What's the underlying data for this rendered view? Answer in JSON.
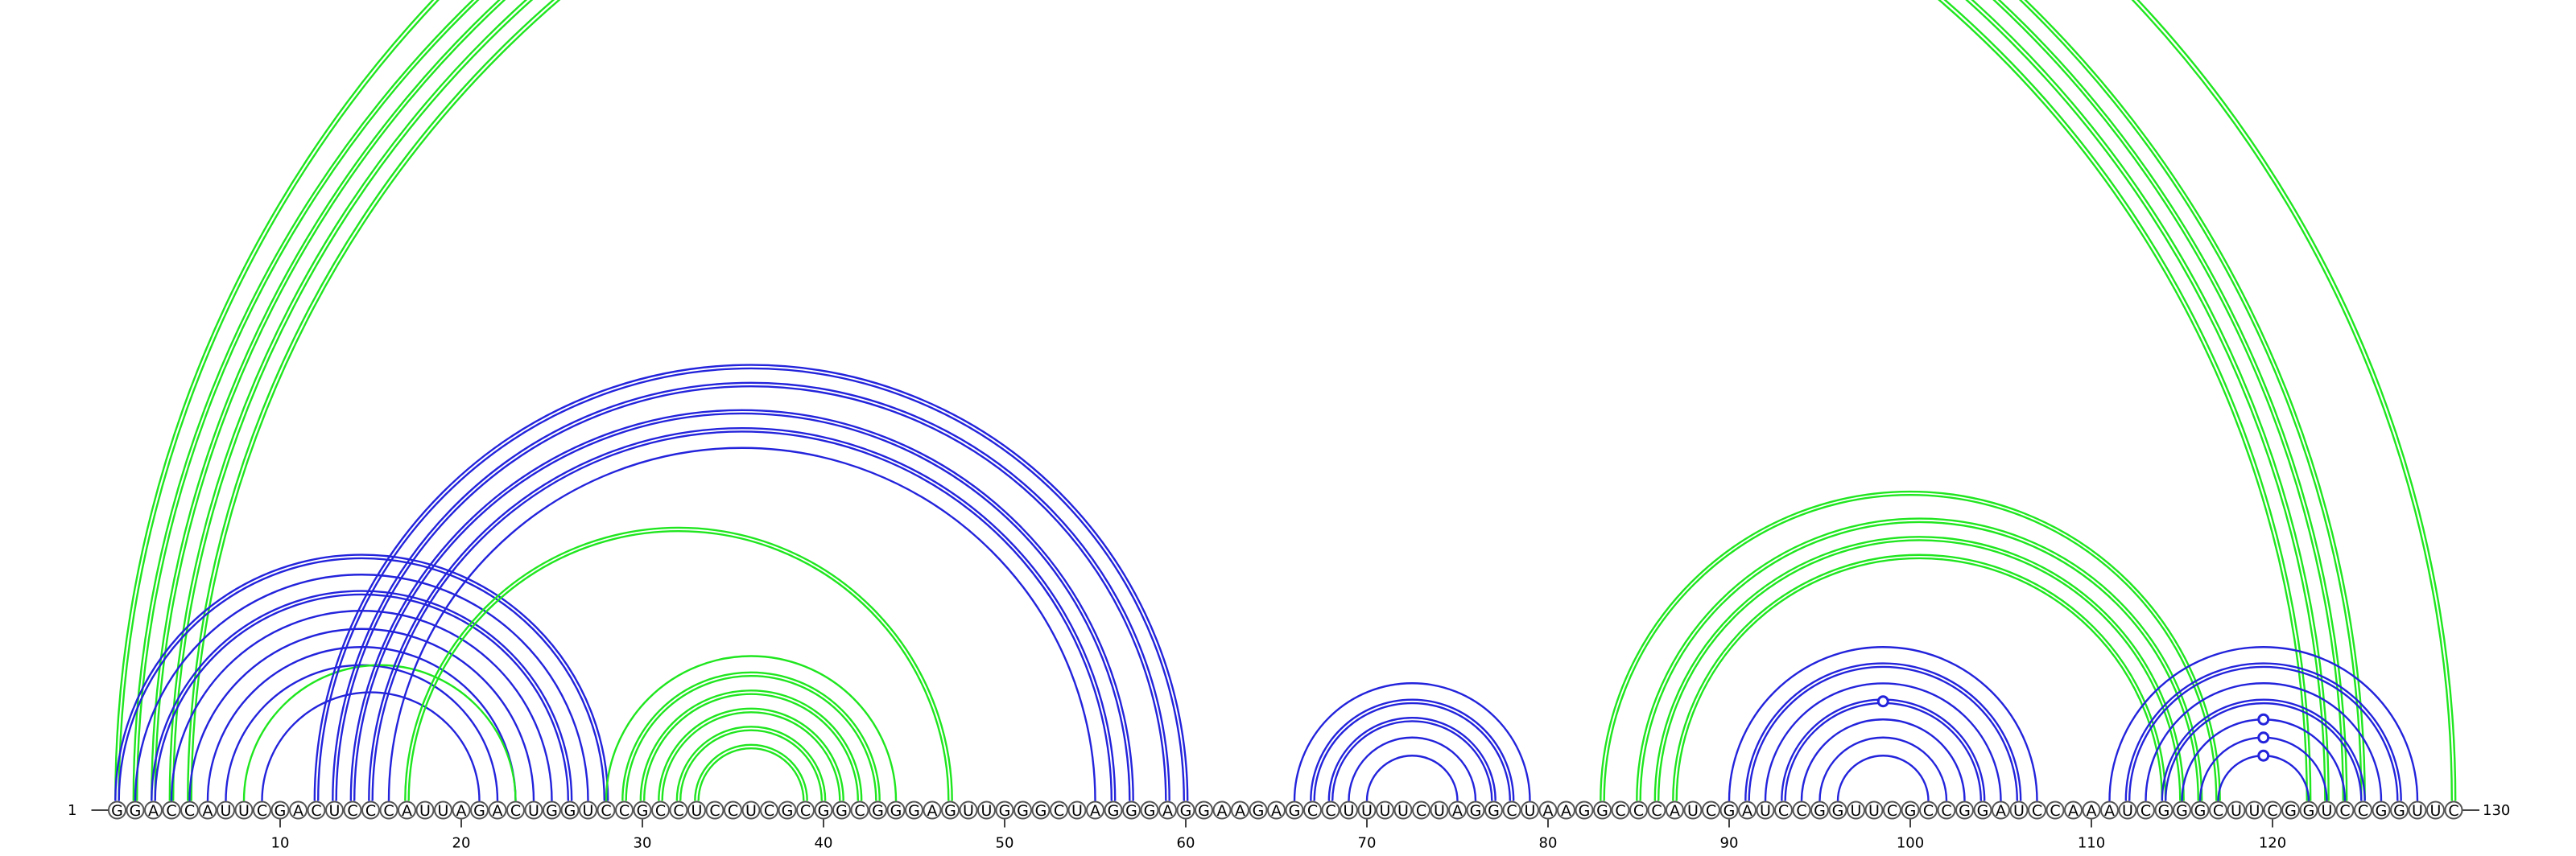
{
  "sequence": "GGACCAUUCGACUCCCAUUAGACUGGUCCGCCUCCUCGCGGCGGGAGUUGGGCUAGGGAGGAAGAGCCUUUUCUAGGCUAAGGCCCAUCGAUCCGGUUCGCCGGAUCCAAAUCGGGCUUCGGUCCGGUUC",
  "start_label": "1",
  "end_label": "130",
  "ticks": [
    10,
    20,
    30,
    40,
    50,
    60,
    70,
    80,
    90,
    100,
    110,
    120
  ],
  "colors": {
    "green": "#1fe61f",
    "blue": "#2323dc"
  },
  "arcs": [
    {
      "i": 1,
      "j": 130,
      "color": "green",
      "lines": 2
    },
    {
      "i": 2,
      "j": 125,
      "color": "green",
      "lines": 2
    },
    {
      "i": 3,
      "j": 124,
      "color": "green",
      "lines": 2
    },
    {
      "i": 4,
      "j": 123,
      "color": "green",
      "lines": 2
    },
    {
      "i": 5,
      "j": 122,
      "color": "green",
      "lines": 2
    },
    {
      "i": 1,
      "j": 28,
      "color": "blue",
      "lines": 2
    },
    {
      "i": 2,
      "j": 27,
      "color": "blue",
      "lines": 1
    },
    {
      "i": 3,
      "j": 26,
      "color": "blue",
      "lines": 2
    },
    {
      "i": 4,
      "j": 25,
      "color": "blue",
      "lines": 1
    },
    {
      "i": 5,
      "j": 24,
      "color": "blue",
      "lines": 1
    },
    {
      "i": 6,
      "j": 23,
      "color": "blue",
      "lines": 1
    },
    {
      "i": 7,
      "j": 22,
      "color": "blue",
      "lines": 1
    },
    {
      "i": 9,
      "j": 21,
      "color": "blue",
      "lines": 1
    },
    {
      "i": 8,
      "j": 23,
      "color": "green",
      "lines": 1
    },
    {
      "i": 12,
      "j": 60,
      "color": "blue",
      "lines": 2
    },
    {
      "i": 13,
      "j": 59,
      "color": "blue",
      "lines": 2
    },
    {
      "i": 14,
      "j": 57,
      "color": "blue",
      "lines": 2
    },
    {
      "i": 15,
      "j": 56,
      "color": "blue",
      "lines": 2
    },
    {
      "i": 16,
      "j": 55,
      "color": "blue",
      "lines": 1
    },
    {
      "i": 17,
      "j": 47,
      "color": "green",
      "lines": 2
    },
    {
      "i": 28,
      "j": 44,
      "color": "green",
      "lines": 1
    },
    {
      "i": 29,
      "j": 43,
      "color": "green",
      "lines": 2
    },
    {
      "i": 30,
      "j": 42,
      "color": "green",
      "lines": 2
    },
    {
      "i": 31,
      "j": 41,
      "color": "green",
      "lines": 2
    },
    {
      "i": 32,
      "j": 40,
      "color": "green",
      "lines": 2
    },
    {
      "i": 33,
      "j": 39,
      "color": "green",
      "lines": 2
    },
    {
      "i": 66,
      "j": 79,
      "color": "blue",
      "lines": 1
    },
    {
      "i": 67,
      "j": 78,
      "color": "blue",
      "lines": 2
    },
    {
      "i": 68,
      "j": 77,
      "color": "blue",
      "lines": 2
    },
    {
      "i": 69,
      "j": 76,
      "color": "blue",
      "lines": 1
    },
    {
      "i": 70,
      "j": 75,
      "color": "blue",
      "lines": 1
    },
    {
      "i": 83,
      "j": 117,
      "color": "green",
      "lines": 2
    },
    {
      "i": 85,
      "j": 116,
      "color": "green",
      "lines": 2
    },
    {
      "i": 86,
      "j": 115,
      "color": "green",
      "lines": 2
    },
    {
      "i": 87,
      "j": 114,
      "color": "green",
      "lines": 2
    },
    {
      "i": 90,
      "j": 107,
      "color": "blue",
      "lines": 1
    },
    {
      "i": 91,
      "j": 106,
      "color": "blue",
      "lines": 2
    },
    {
      "i": 92,
      "j": 105,
      "color": "blue",
      "lines": 1
    },
    {
      "i": 93,
      "j": 104,
      "color": "blue",
      "lines": 2
    },
    {
      "i": 94,
      "j": 103,
      "color": "blue",
      "lines": 1
    },
    {
      "i": 95,
      "j": 102,
      "color": "blue",
      "lines": 1
    },
    {
      "i": 96,
      "j": 101,
      "color": "blue",
      "lines": 1
    },
    {
      "i": 111,
      "j": 128,
      "color": "blue",
      "lines": 1
    },
    {
      "i": 112,
      "j": 127,
      "color": "blue",
      "lines": 2
    },
    {
      "i": 113,
      "j": 126,
      "color": "blue",
      "lines": 1
    },
    {
      "i": 114,
      "j": 125,
      "color": "blue",
      "lines": 2
    },
    {
      "i": 115,
      "j": 124,
      "color": "blue",
      "lines": 1
    },
    {
      "i": 116,
      "j": 123,
      "color": "blue",
      "lines": 1
    },
    {
      "i": 117,
      "j": 122,
      "color": "blue",
      "lines": 1
    }
  ],
  "markers": [
    {
      "x": 66,
      "color": "green",
      "arc": 0
    },
    {
      "x": 98.5,
      "color": "blue",
      "arc": 45
    },
    {
      "x": 119.5,
      "color": "blue",
      "arc": 46
    },
    {
      "x": 119.5,
      "color": "blue",
      "arc": 47
    },
    {
      "x": 119.5,
      "color": "blue",
      "arc": 48
    }
  ]
}
